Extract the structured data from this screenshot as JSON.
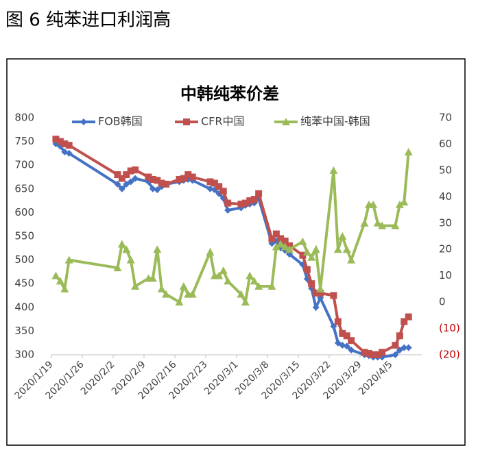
{
  "caption": "图 6  纯苯进口利润高",
  "chart_data": {
    "type": "line",
    "title": "中韩纯苯价差",
    "x": [
      "2020/1/20",
      "2020/1/21",
      "2020/1/22",
      "2020/1/23",
      "2020/2/3",
      "2020/2/4",
      "2020/2/5",
      "2020/2/6",
      "2020/2/7",
      "2020/2/10",
      "2020/2/11",
      "2020/2/12",
      "2020/2/13",
      "2020/2/14",
      "2020/2/17",
      "2020/2/18",
      "2020/2/19",
      "2020/2/20",
      "2020/2/24",
      "2020/2/25",
      "2020/2/26",
      "2020/2/27",
      "2020/2/28",
      "2020/3/2",
      "2020/3/3",
      "2020/3/4",
      "2020/3/5",
      "2020/3/6",
      "2020/3/9",
      "2020/3/10",
      "2020/3/11",
      "2020/3/12",
      "2020/3/13",
      "2020/3/16",
      "2020/3/17",
      "2020/3/18",
      "2020/3/19",
      "2020/3/20",
      "2020/3/23",
      "2020/3/24",
      "2020/3/25",
      "2020/3/26",
      "2020/3/27",
      "2020/3/30",
      "2020/3/31",
      "2020/4/1",
      "2020/4/2",
      "2020/4/3",
      "2020/4/6",
      "2020/4/7",
      "2020/4/8",
      "2020/4/9"
    ],
    "series": [
      {
        "name": "FOB韩国",
        "color": "#4472c4",
        "marker": "diamond",
        "values": [
          745,
          740,
          728,
          725,
          660,
          650,
          660,
          665,
          672,
          665,
          650,
          648,
          655,
          660,
          665,
          668,
          670,
          668,
          650,
          648,
          640,
          630,
          605,
          610,
          615,
          618,
          620,
          630,
          535,
          540,
          525,
          520,
          512,
          490,
          460,
          440,
          400,
          420,
          360,
          325,
          320,
          318,
          310,
          300,
          298,
          295,
          295,
          295,
          300,
          310,
          315,
          315
        ]
      },
      {
        "name": "CFR中国",
        "color": "#c0504d",
        "marker": "square",
        "values": [
          755,
          750,
          745,
          742,
          680,
          672,
          680,
          688,
          690,
          675,
          670,
          668,
          662,
          660,
          670,
          672,
          680,
          675,
          665,
          662,
          655,
          645,
          620,
          618,
          620,
          625,
          628,
          640,
          545,
          555,
          545,
          540,
          530,
          510,
          480,
          450,
          430,
          430,
          425,
          370,
          345,
          340,
          330,
          305,
          303,
          300,
          300,
          305,
          320,
          340,
          370,
          380
        ]
      },
      {
        "name": "纯苯中国-韩国",
        "color": "#9bbb59",
        "marker": "triangle",
        "axis": "y2",
        "values": [
          10,
          8,
          5,
          16,
          13,
          22,
          20,
          16,
          6,
          9,
          9,
          20,
          5,
          3,
          0,
          6,
          3,
          3,
          19,
          10,
          10,
          12,
          8,
          3,
          0,
          10,
          8,
          6,
          6,
          21,
          22,
          21,
          20,
          23,
          19,
          17,
          20,
          5,
          50,
          20,
          25,
          20,
          16,
          30,
          37,
          37,
          30,
          29,
          29,
          37,
          38,
          57
        ]
      }
    ],
    "xlim": [
      "2020/1/19",
      "2020/4/12"
    ],
    "xticks": [
      "2020/1/19",
      "2020/1/26",
      "2020/2/2",
      "2020/2/9",
      "2020/2/16",
      "2020/2/23",
      "2020/3/1",
      "2020/3/8",
      "2020/3/15",
      "2020/3/22",
      "2020/3/29",
      "2020/4/5"
    ],
    "ylim": [
      300,
      800
    ],
    "yticks": [
      300,
      350,
      400,
      450,
      500,
      550,
      600,
      650,
      700,
      750,
      800
    ],
    "y2lim": [
      -20,
      70
    ],
    "y2ticks": [
      {
        "value": -20,
        "label": "(20)"
      },
      {
        "value": -10,
        "label": "(10)"
      },
      0,
      10,
      20,
      30,
      40,
      50,
      60,
      70
    ],
    "negative_tick_color": "#c00000",
    "grid": false,
    "legend": "top"
  }
}
